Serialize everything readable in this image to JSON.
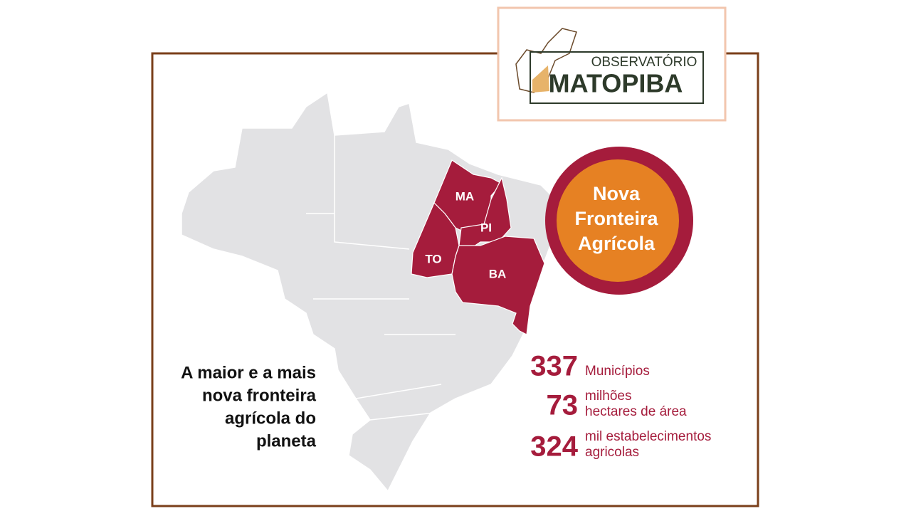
{
  "logo": {
    "line1": "OBSERVATÓRIO",
    "line2": "MATOPIBA"
  },
  "map": {
    "states": [
      "MA",
      "PI",
      "TO",
      "BA"
    ]
  },
  "badge": {
    "lines": [
      "Nova",
      "Fronteira",
      "Agrícola"
    ]
  },
  "tagline": {
    "lines": [
      "A maior e a mais",
      "nova fronteira",
      "agrícola do",
      "planeta"
    ]
  },
  "stats": [
    {
      "number": 337,
      "label": [
        "Municípios"
      ]
    },
    {
      "number": 73,
      "label": [
        "milhões",
        "hectares de área"
      ]
    },
    {
      "number": 324,
      "label": [
        "mil estabelecimentos",
        "agricolas"
      ]
    }
  ]
}
